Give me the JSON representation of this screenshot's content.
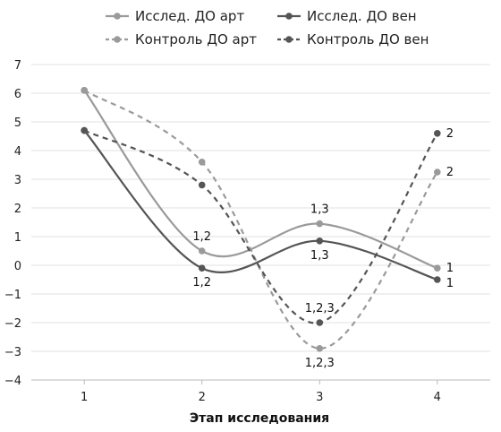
{
  "chart_data": {
    "type": "line",
    "xlabel": "Этап исследования",
    "ylabel": "",
    "x": [
      1,
      2,
      3,
      4
    ],
    "xlim": [
      0.55,
      4.45
    ],
    "ylim": [
      -4,
      7
    ],
    "yticks": [
      7,
      6,
      5,
      4,
      3,
      2,
      1,
      0,
      -1,
      -2,
      -3,
      -4
    ],
    "ytick_labels": [
      "7",
      "6",
      "5",
      "4",
      "3",
      "2",
      "1",
      "0",
      "−1",
      "−2",
      "−3",
      "−4"
    ],
    "xtick_labels": [
      "1",
      "2",
      "3",
      "4"
    ],
    "grid": true,
    "legend_position": "top",
    "series": [
      {
        "name": "Исслед. ДО арт",
        "values": [
          6.1,
          0.5,
          1.45,
          -0.1
        ],
        "color": "#9a9a9a",
        "dash": "solid",
        "labels": [
          "",
          "1,2",
          "1,3",
          "1"
        ]
      },
      {
        "name": "Исслед. ДО вен",
        "values": [
          4.7,
          -0.1,
          0.85,
          -0.5
        ],
        "color": "#555555",
        "dash": "solid",
        "labels": [
          "",
          "1,2",
          "1,3",
          "1"
        ]
      },
      {
        "name": "Контроль ДО арт",
        "values": [
          6.1,
          3.6,
          -2.9,
          3.25
        ],
        "color": "#9a9a9a",
        "dash": "dashed",
        "labels": [
          "",
          "",
          "1,2,3",
          "2"
        ]
      },
      {
        "name": "Контроль ДО вен",
        "values": [
          4.7,
          2.8,
          -2.0,
          4.6
        ],
        "color": "#555555",
        "dash": "dashed",
        "labels": [
          "",
          "",
          "1,2,3",
          "2"
        ]
      }
    ]
  }
}
